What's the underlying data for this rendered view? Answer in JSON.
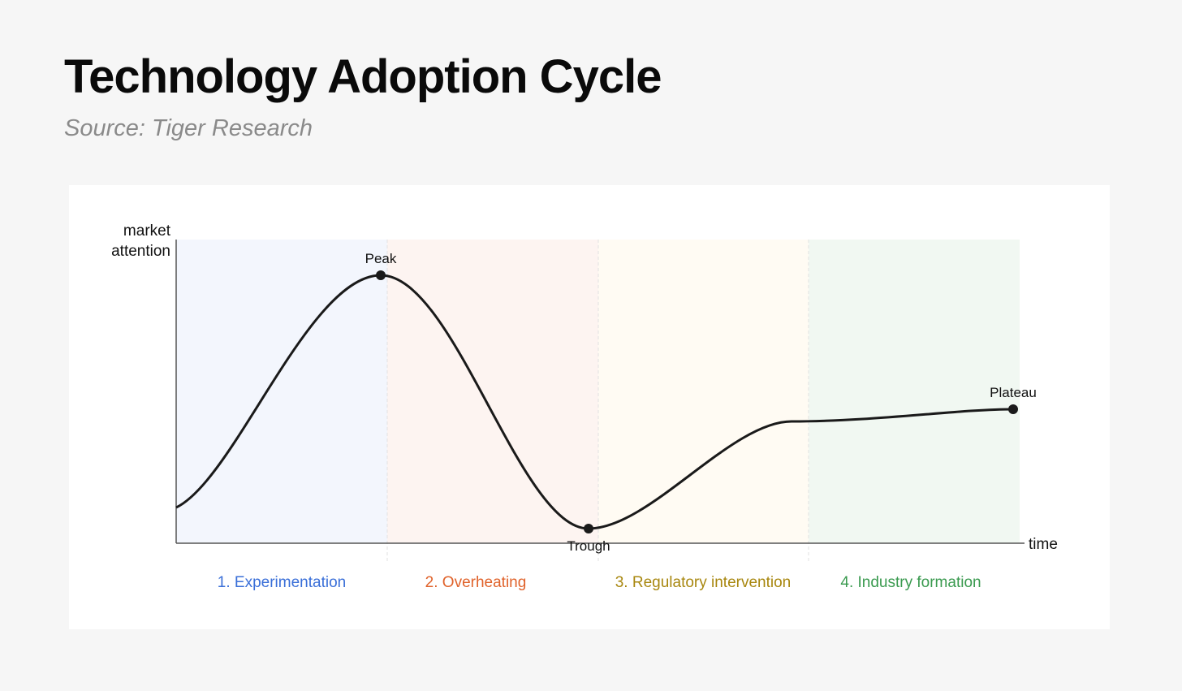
{
  "header": {
    "title": "Technology Adoption Cycle",
    "subtitle": "Source: Tiger Research"
  },
  "axes": {
    "y_label": [
      "market",
      "attention"
    ],
    "x_label": "time"
  },
  "points": [
    {
      "label": "Peak"
    },
    {
      "label": "Trough"
    },
    {
      "label": "Plateau"
    }
  ],
  "phases": [
    "1. Experimentation",
    "2. Overheating",
    "3. Regulatory intervention",
    "4. Industry formation"
  ]
}
